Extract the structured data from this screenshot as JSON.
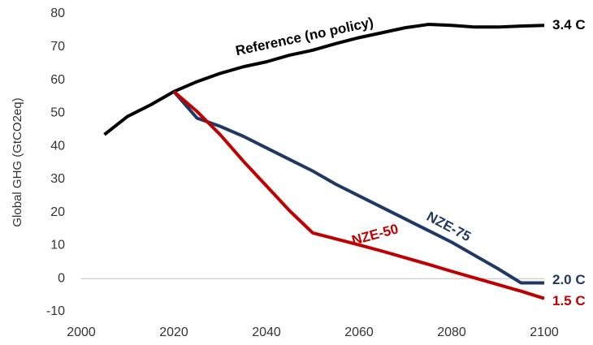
{
  "chart_data": {
    "type": "line",
    "y_label": "Global GHG (GtCO2eq)",
    "x": [
      2005,
      2010,
      2015,
      2020,
      2025,
      2030,
      2035,
      2040,
      2045,
      2050,
      2055,
      2060,
      2065,
      2070,
      2075,
      2080,
      2085,
      2090,
      2095,
      2100
    ],
    "series": [
      {
        "name": "Reference (no policy)",
        "color": "#000000",
        "end_label": "3.4 C",
        "values": [
          43.5,
          49,
          52.5,
          56.5,
          59.5,
          62,
          64,
          65.5,
          67.5,
          69,
          71,
          72.8,
          74.3,
          75.8,
          76.8,
          76.5,
          76,
          76,
          76.3,
          76.5
        ]
      },
      {
        "name": "NZE-75",
        "color": "#1f3864",
        "end_label": "2.0 C",
        "values": [
          null,
          null,
          null,
          56.5,
          48.5,
          46,
          43,
          39.5,
          36,
          32.5,
          28.5,
          25,
          21.5,
          18,
          14.5,
          11,
          7,
          3,
          -1.3,
          -1.3
        ]
      },
      {
        "name": "NZE-50",
        "color": "#c00000",
        "end_label": "1.5 C",
        "values": [
          null,
          null,
          null,
          56.5,
          50.5,
          43.5,
          35.5,
          28,
          20.5,
          13.8,
          12,
          10.2,
          8.3,
          6.3,
          4.3,
          2.2,
          0.2,
          -1.8,
          -3.8,
          -6
        ]
      }
    ],
    "xlim": [
      2000,
      2100
    ],
    "xticks": [
      2000,
      2020,
      2040,
      2060,
      2080,
      2100
    ],
    "ylim": [
      -10,
      80
    ],
    "yticks": [
      -10,
      0,
      10,
      20,
      30,
      40,
      50,
      60,
      70,
      80
    ]
  }
}
